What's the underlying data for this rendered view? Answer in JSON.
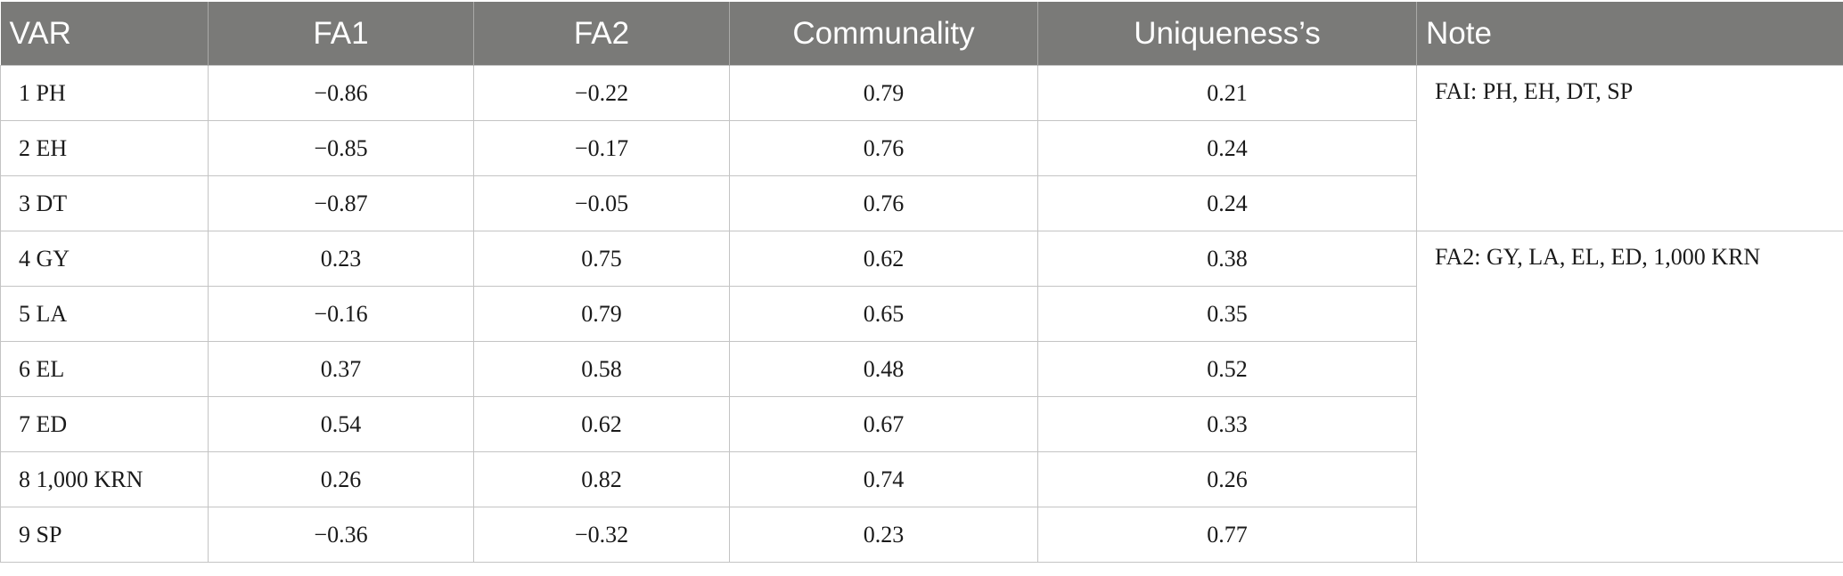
{
  "table": {
    "headers": [
      "VAR",
      "FA1",
      "FA2",
      "Communality",
      "Uniqueness’s",
      "Note"
    ],
    "rows": [
      {
        "var": "1 PH",
        "fa1": "−0.86",
        "fa2": "−0.22",
        "communality": "0.79",
        "uniqueness": "0.21"
      },
      {
        "var": "2 EH",
        "fa1": "−0.85",
        "fa2": "−0.17",
        "communality": "0.76",
        "uniqueness": "0.24"
      },
      {
        "var": "3 DT",
        "fa1": "−0.87",
        "fa2": "−0.05",
        "communality": "0.76",
        "uniqueness": "0.24"
      },
      {
        "var": "4 GY",
        "fa1": "0.23",
        "fa2": "0.75",
        "communality": "0.62",
        "uniqueness": "0.38"
      },
      {
        "var": "5 LA",
        "fa1": "−0.16",
        "fa2": "0.79",
        "communality": "0.65",
        "uniqueness": "0.35"
      },
      {
        "var": "6 EL",
        "fa1": "0.37",
        "fa2": "0.58",
        "communality": "0.48",
        "uniqueness": "0.52"
      },
      {
        "var": "7 ED",
        "fa1": "0.54",
        "fa2": "0.62",
        "communality": "0.67",
        "uniqueness": "0.33"
      },
      {
        "var": "8 1,000 KRN",
        "fa1": "0.26",
        "fa2": "0.82",
        "communality": "0.74",
        "uniqueness": "0.26"
      },
      {
        "var": "9 SP",
        "fa1": "−0.36",
        "fa2": "−0.32",
        "communality": "0.23",
        "uniqueness": "0.77"
      }
    ],
    "notes": [
      "FAI: PH, EH, DT, SP",
      "FA2: GY, LA, EL, ED, 1,000 KRN"
    ]
  },
  "colors": {
    "header_bg": "#7a7a78",
    "header_text": "#ffffff",
    "grid": "#c4c4c4"
  }
}
